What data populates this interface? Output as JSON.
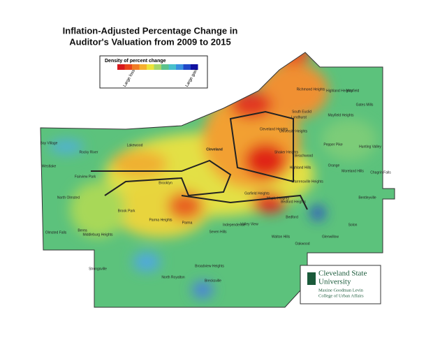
{
  "title": [
    "Inflation-Adjusted Percentage Change in",
    "Auditor's Valuation from 2009 to 2015"
  ],
  "legend": {
    "title": "Density of percent change",
    "low": "Large loss",
    "high": "Large gain"
  },
  "places": [
    "Bay Village",
    "Westlake",
    "Rocky River",
    "Lakewood",
    "North Olmsted",
    "Fairview Park",
    "Brook Park",
    "Berea",
    "Olmsted Falls",
    "Middleburg Heights",
    "Strongsville",
    "North Royalton",
    "Broadview Heights",
    "Brecksville",
    "Parma Heights",
    "Parma",
    "Seven Hills",
    "Independence",
    "Valley View",
    "Brooklyn",
    "Cleveland",
    "Garfield Heights",
    "Maple Heights",
    "Bedford",
    "Bedford Heights",
    "Walton Hills",
    "Oakwood",
    "Glenwillow",
    "Solon",
    "Bentleyville",
    "Chagrin Falls",
    "Moreland Hills",
    "Hunting Valley",
    "Pepper Pike",
    "Orange",
    "Beachwood",
    "Shaker Heights",
    "University Heights",
    "Cleveland Heights",
    "South Euclid",
    "Lyndhurst",
    "Mayfield Heights",
    "Highland Heights",
    "Richmond Heights",
    "Mayfield",
    "Gates Mills",
    "Warrensville Heights",
    "Highland Hills"
  ],
  "logo": {
    "name1": "Cleveland State",
    "name2": "University",
    "sub1": "Maxine Goodman Levin",
    "sub2": "College of Urban Affairs"
  }
}
